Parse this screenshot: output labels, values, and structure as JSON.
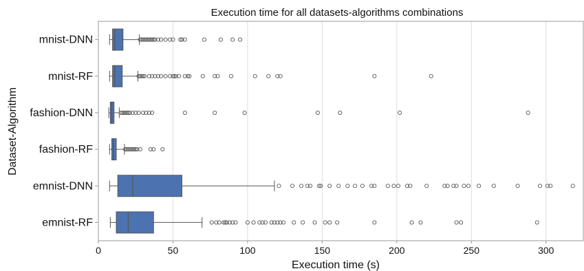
{
  "chart_data": {
    "type": "boxplot",
    "orientation": "horizontal",
    "title": "Execution time for all datasets-algorithms combinations",
    "xlabel": "Execution time (s)",
    "ylabel": "Dataset-Algorithm",
    "xlim": [
      0,
      325
    ],
    "xticks": [
      0,
      50,
      100,
      150,
      200,
      250,
      300
    ],
    "grid": "vertical",
    "colors": {
      "box_fill": "#4c72b0",
      "edge": "#555555",
      "grid": "#dddddd",
      "outlier": "#555555"
    },
    "categories": [
      "mnist-DNN",
      "mnist-RF",
      "fashion-DNN",
      "fashion-RF",
      "emnist-DNN",
      "emnist-RF"
    ],
    "boxes": [
      {
        "label": "mnist-DNN",
        "whisker_low": 7.5,
        "q1": 9.5,
        "median": 11,
        "q3": 16.5,
        "whisker_high": 27.5,
        "outliers": [
          28,
          29,
          30,
          31,
          32,
          33,
          34,
          35,
          36,
          37,
          38,
          40,
          42,
          45,
          48,
          50,
          55,
          56,
          58,
          71,
          82,
          90,
          95
        ]
      },
      {
        "label": "mnist-RF",
        "whisker_low": 7.5,
        "q1": 9.5,
        "median": 11,
        "q3": 16,
        "whisker_high": 26.5,
        "outliers": [
          27,
          28,
          29,
          30,
          31,
          34,
          36,
          38,
          40,
          42,
          45,
          48,
          50,
          51,
          52,
          54,
          58,
          60,
          61,
          70,
          78,
          80,
          89,
          105,
          114,
          120,
          122,
          185,
          223
        ]
      },
      {
        "label": "fashion-DNN",
        "whisker_low": 7,
        "q1": 8,
        "median": 9,
        "q3": 10.5,
        "whisker_high": 14,
        "outliers": [
          15,
          16,
          17,
          18,
          19,
          20,
          21,
          23,
          25,
          27,
          30,
          32,
          34,
          36,
          58,
          78,
          98,
          147,
          162,
          202,
          288
        ]
      },
      {
        "label": "fashion-RF",
        "whisker_low": 7.5,
        "q1": 9,
        "median": 10,
        "q3": 12,
        "whisker_high": 17.5,
        "outliers": [
          18,
          19,
          20,
          21,
          22,
          23,
          24,
          25,
          26,
          28,
          35,
          37,
          43
        ]
      },
      {
        "label": "emnist-DNN",
        "whisker_low": 7.5,
        "q1": 13,
        "median": 23,
        "q3": 56,
        "whisker_high": 118,
        "outliers": [
          121,
          130,
          136,
          140,
          142,
          148,
          149,
          155,
          161,
          167,
          172,
          177,
          183,
          185,
          194,
          198,
          201,
          207,
          209,
          220,
          232,
          234,
          238,
          240,
          245,
          248,
          255,
          265,
          281,
          296,
          301,
          303,
          318
        ]
      },
      {
        "label": "emnist-RF",
        "whisker_low": 8,
        "q1": 12,
        "median": 20,
        "q3": 37,
        "whisker_high": 69.5,
        "outliers": [
          76,
          79,
          81,
          84,
          85,
          86,
          88,
          90,
          92,
          100,
          104,
          108,
          110,
          112,
          116,
          118,
          120,
          122,
          124,
          131,
          137,
          145,
          152,
          155,
          160,
          185,
          210,
          216,
          240,
          243,
          294
        ]
      }
    ]
  }
}
